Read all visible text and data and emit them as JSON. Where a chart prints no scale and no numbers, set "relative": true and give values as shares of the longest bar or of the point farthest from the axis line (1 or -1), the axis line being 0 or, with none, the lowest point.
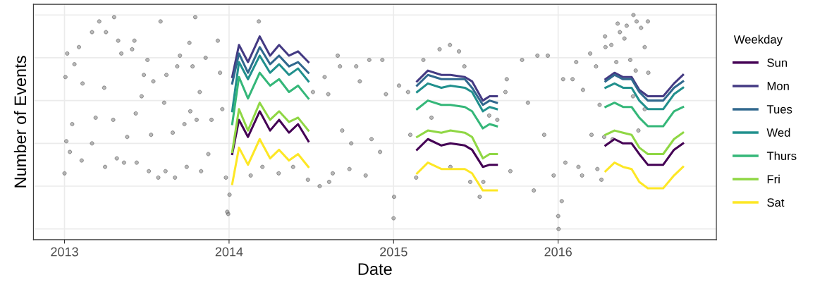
{
  "chart_data": {
    "type": "line",
    "xlabel": "Date",
    "ylabel": "Number of Events",
    "legend_title": "Weekday",
    "legend": "right",
    "relative": true,
    "grid": true,
    "tick_labels": "x",
    "line_style": "solid",
    "xlim": [
      "2012-10-24",
      "2016-12-17"
    ],
    "xticks": [
      {
        "value": "2013-01-01",
        "label": "2013"
      },
      {
        "value": "2014-01-01",
        "label": "2014"
      },
      {
        "value": "2015-01-01",
        "label": "2015"
      },
      {
        "value": "2016-01-01",
        "label": "2016"
      }
    ],
    "x": [
      "2014-01-08",
      "2014-01-23",
      "2014-02-12",
      "2014-03-10",
      "2014-04-02",
      "2014-04-22",
      "2014-05-14",
      "2014-06-03",
      "2014-06-26",
      "2014-10-01",
      "2015-02-22",
      "2015-03-18",
      "2015-04-17",
      "2015-05-07",
      "2015-06-08",
      "2015-06-24",
      "2015-07-18",
      "2015-08-02",
      "2015-08-18",
      "2016-01-01",
      "2016-04-15",
      "2016-05-05",
      "2016-05-24",
      "2016-06-12",
      "2016-06-29",
      "2016-07-18",
      "2016-08-21",
      "2016-09-14",
      "2016-10-04"
    ],
    "series": [
      {
        "type": "scatter",
        "marker": "circle",
        "color": "#808080",
        "x": [
          "2013-01-01",
          "2013-01-03",
          "2013-01-05",
          "2013-01-07",
          "2013-01-13",
          "2013-01-18",
          "2013-01-23",
          "2013-02-02",
          "2013-02-08",
          "2013-02-10",
          "2013-03-03",
          "2013-03-19",
          "2013-03-03",
          "2013-03-11",
          "2013-04-01",
          "2013-03-30",
          "2013-04-03",
          "2013-04-21",
          "2013-04-19",
          "2013-04-27",
          "2013-04-30",
          "2013-05-07",
          "2013-05-13",
          "2013-05-20",
          "2013-05-31",
          "2013-06-05",
          "2013-06-08",
          "2013-06-10",
          "2013-06-21",
          "2013-06-26",
          "2013-07-04",
          "2013-07-07",
          "2013-07-12",
          "2013-07-17",
          "2013-07-28",
          "2013-08-02",
          "2013-08-10",
          "2013-08-15",
          "2013-08-13",
          "2013-08-29",
          "2013-09-03",
          "2013-09-08",
          "2013-09-14",
          "2013-09-24",
          "2013-09-29",
          "2013-10-05",
          "2013-10-07",
          "2013-10-12",
          "2013-10-18",
          "2013-10-21",
          "2013-10-28",
          "2013-10-31",
          "2013-11-10",
          "2013-11-16",
          "2013-11-23",
          "2013-12-07",
          "2013-12-12",
          "2013-12-17",
          "2013-12-25",
          "2013-12-30",
          "2013-12-28",
          "2014-01-02",
          "2014-03-08",
          "2014-02-18",
          "2014-03-16",
          "2014-04-21",
          "2014-05-23",
          "2014-07-06",
          "2014-06-25",
          "2014-07-21",
          "2014-08-01",
          "2014-08-09",
          "2014-08-11",
          "2014-08-30",
          "2014-08-19",
          "2014-09-04",
          "2014-09-09",
          "2014-09-25",
          "2014-10-10",
          "2014-10-18",
          "2014-09-29",
          "2014-11-08",
          "2014-10-31",
          "2014-11-13",
          "2014-12-07",
          "2014-12-02",
          "2014-12-15",
          "2015-01-01",
          "2015-01-02",
          "2015-01-13",
          "2015-02-02",
          "2015-02-07",
          "2015-02-20",
          "2015-03-08",
          "2015-03-26",
          "2015-04-13",
          "2015-05-06",
          "2015-05-26",
          "2015-05-07",
          "2015-06-07",
          "2015-06-20",
          "2015-07-11",
          "2015-07-19",
          "2015-08-01",
          "2015-08-19",
          "2015-09-06",
          "2015-09-09",
          "2015-09-17",
          "2015-10-13",
          "2015-10-26",
          "2015-11-08",
          "2015-11-16",
          "2015-12-09",
          "2015-12-01",
          "2015-12-22",
          "2016-01-01",
          "2016-01-02",
          "2016-01-09",
          "2016-01-12",
          "2016-01-17",
          "2016-02-02",
          "2016-02-10",
          "2016-02-15",
          "2016-02-23",
          "2016-02-25",
          "2016-03-12",
          "2016-03-15",
          "2016-03-25",
          "2016-03-28",
          "2016-04-06",
          "2016-04-14",
          "2016-04-15",
          "2016-04-28",
          "2016-05-09",
          "2016-05-12",
          "2016-05-17",
          "2016-05-27",
          "2016-06-01",
          "2016-06-16",
          "2016-06-23",
          "2016-06-09",
          "2016-06-15",
          "2016-06-21",
          "2016-07-03",
          "2016-07-11",
          "2016-07-18",
          "2016-07-19",
          "2016-07-11",
          "2016-06-27",
          "2016-05-01",
          "2016-04-12",
          "2016-04-02"
        ],
        "values": [
          0.26,
          0.71,
          0.41,
          0.82,
          0.36,
          0.49,
          0.77,
          0.85,
          0.32,
          0.68,
          0.92,
          0.97,
          0.4,
          0.52,
          0.29,
          0.66,
          0.92,
          0.99,
          0.51,
          0.33,
          0.88,
          0.82,
          0.31,
          0.43,
          0.84,
          0.88,
          0.54,
          0.31,
          0.62,
          0.72,
          0.79,
          0.27,
          0.44,
          0.69,
          0.24,
          0.97,
          0.59,
          0.72,
          0.27,
          0.45,
          0.24,
          0.76,
          0.81,
          0.49,
          0.29,
          0.87,
          0.55,
          0.76,
          0.99,
          0.51,
          0.64,
          0.27,
          0.8,
          0.35,
          0.51,
          0.88,
          0.73,
          0.56,
          0.24,
          0.07,
          0.08,
          0.16,
          0.97,
          0.25,
          0.29,
          0.26,
          0.29,
          0.64,
          0.23,
          0.2,
          0.71,
          0.63,
          0.22,
          0.81,
          0.26,
          0.76,
          0.46,
          0.28,
          0.76,
          0.69,
          0.4,
          0.79,
          0.25,
          0.42,
          0.79,
          0.36,
          0.63,
          0.05,
          0.15,
          0.67,
          0.64,
          0.44,
          0.24,
          0.79,
          0.52,
          0.84,
          0.86,
          0.83,
          0.29,
          0.76,
          0.22,
          0.15,
          0.22,
          0.53,
          0.51,
          0.64,
          0.7,
          0.27,
          0.79,
          0.59,
          0.18,
          0.81,
          0.81,
          0.44,
          0.25,
          0.06,
          0.0,
          0.13,
          0.7,
          0.31,
          0.7,
          0.78,
          0.29,
          0.25,
          0.65,
          0.82,
          0.44,
          0.76,
          0.28,
          0.23,
          0.9,
          0.85,
          0.86,
          0.78,
          0.96,
          0.92,
          0.89,
          0.95,
          1.0,
          0.97,
          0.79,
          0.62,
          0.74,
          0.94,
          0.85,
          0.97,
          0.73,
          0.56,
          0.46,
          0.42,
          0.43,
          0.58
        ]
      },
      {
        "name": "Sun",
        "color": "#440154",
        "values": [
          0.35,
          0.51,
          0.43,
          0.55,
          0.46,
          0.51,
          0.45,
          0.49,
          0.41,
          null,
          0.37,
          0.42,
          0.39,
          0.4,
          0.39,
          0.37,
          0.29,
          0.3,
          0.3,
          null,
          0.39,
          0.42,
          0.4,
          0.4,
          0.35,
          0.3,
          0.3,
          0.37,
          0.4
        ]
      },
      {
        "name": "Mon",
        "color": "#443a83",
        "values": [
          0.71,
          0.86,
          0.78,
          0.9,
          0.81,
          0.86,
          0.81,
          0.83,
          0.78,
          null,
          0.69,
          0.74,
          0.72,
          0.72,
          0.71,
          0.69,
          0.6,
          0.62,
          0.62,
          null,
          0.7,
          0.73,
          0.71,
          0.71,
          0.65,
          0.62,
          0.62,
          0.68,
          0.72
        ]
      },
      {
        "name": "Tues",
        "color": "#31688e",
        "values": [
          0.68,
          0.82,
          0.73,
          0.85,
          0.77,
          0.81,
          0.76,
          0.78,
          0.73,
          null,
          0.67,
          0.72,
          0.7,
          0.7,
          0.7,
          0.66,
          0.58,
          0.6,
          0.59,
          null,
          0.69,
          0.72,
          0.7,
          0.7,
          0.64,
          0.6,
          0.6,
          0.66,
          0.69
        ]
      },
      {
        "name": "Wed",
        "color": "#21908d",
        "values": [
          0.55,
          0.78,
          0.7,
          0.81,
          0.73,
          0.77,
          0.72,
          0.75,
          0.69,
          null,
          0.64,
          0.68,
          0.66,
          0.67,
          0.66,
          0.64,
          0.55,
          0.57,
          0.56,
          null,
          0.66,
          0.68,
          0.66,
          0.66,
          0.6,
          0.56,
          0.56,
          0.63,
          0.66
        ]
      },
      {
        "name": "Thurs",
        "color": "#35b779",
        "values": [
          0.49,
          0.71,
          0.61,
          0.73,
          0.67,
          0.7,
          0.64,
          0.67,
          0.61,
          null,
          0.56,
          0.6,
          0.58,
          0.58,
          0.57,
          0.55,
          0.47,
          0.49,
          0.48,
          null,
          0.57,
          0.59,
          0.57,
          0.57,
          0.52,
          0.48,
          0.48,
          0.55,
          0.57
        ]
      },
      {
        "name": "Fri",
        "color": "#8fd744",
        "values": [
          0.36,
          0.56,
          0.46,
          0.59,
          0.51,
          0.55,
          0.5,
          0.52,
          0.46,
          null,
          0.43,
          0.46,
          0.45,
          0.46,
          0.45,
          0.43,
          0.33,
          0.35,
          0.35,
          null,
          0.44,
          0.46,
          0.45,
          0.44,
          0.38,
          0.35,
          0.35,
          0.42,
          0.45
        ]
      },
      {
        "name": "Sat",
        "color": "#fde725",
        "values": [
          0.21,
          0.38,
          0.3,
          0.42,
          0.33,
          0.37,
          0.32,
          0.35,
          0.29,
          null,
          0.26,
          0.31,
          0.28,
          0.28,
          0.28,
          0.26,
          0.18,
          0.18,
          0.18,
          null,
          0.27,
          0.31,
          0.29,
          0.28,
          0.22,
          0.19,
          0.19,
          0.25,
          0.29
        ]
      }
    ]
  }
}
